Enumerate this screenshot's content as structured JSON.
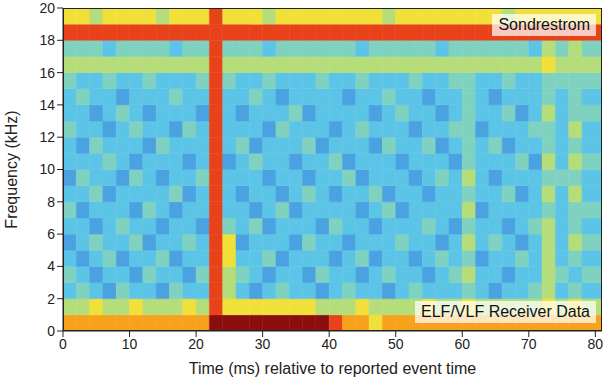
{
  "chart_data": {
    "type": "heatmap",
    "x_label": "Time (ms) relative to reported event time",
    "y_label": "Frequency (kHz)",
    "annotations": [
      "Sondrestrom",
      "ELF/VLF Receiver Data"
    ],
    "xlim": [
      0,
      81
    ],
    "xticks": [
      0,
      10,
      20,
      30,
      40,
      50,
      60,
      70,
      80
    ],
    "ylim": [
      0,
      20
    ],
    "yticks": [
      0,
      2,
      4,
      6,
      8,
      10,
      12,
      14,
      16,
      18,
      20
    ],
    "x_bins": [
      0,
      2,
      4,
      6,
      8,
      10,
      12,
      14,
      16,
      18,
      20,
      22,
      24,
      26,
      28,
      30,
      32,
      34,
      36,
      38,
      40,
      42,
      44,
      46,
      48,
      50,
      52,
      54,
      56,
      58,
      60,
      62,
      64,
      66,
      68,
      70,
      72,
      74,
      76,
      78,
      81
    ],
    "y_bins": [
      0,
      1,
      2,
      3,
      4,
      5,
      6,
      7,
      8,
      9,
      10,
      11,
      12,
      13,
      14,
      15,
      16,
      17,
      18,
      19,
      20
    ],
    "colors": [
      "#2b3d9e",
      "#3d6fd4",
      "#4aa3e0",
      "#5cc4e6",
      "#7fd1c0",
      "#b5dd7a",
      "#f2e03a",
      "#f7a21d",
      "#e8421a",
      "#8b0e0e"
    ],
    "cells": [
      [
        7,
        7,
        7,
        7,
        7,
        7,
        7,
        7,
        7,
        7,
        7,
        9,
        9,
        9,
        9,
        9,
        9,
        9,
        9,
        9,
        8,
        7,
        7,
        6,
        7,
        7,
        7,
        7,
        7,
        7,
        7,
        7,
        7,
        7,
        7,
        7,
        7,
        7,
        7,
        7
      ],
      [
        5,
        5,
        6,
        5,
        5,
        6,
        5,
        5,
        5,
        6,
        5,
        8,
        6,
        6,
        6,
        6,
        6,
        6,
        6,
        5,
        5,
        5,
        6,
        5,
        5,
        5,
        5,
        6,
        5,
        5,
        6,
        5,
        5,
        5,
        5,
        5,
        6,
        5,
        6,
        5
      ],
      [
        3,
        4,
        3,
        2,
        4,
        3,
        3,
        2,
        4,
        3,
        3,
        8,
        5,
        3,
        2,
        3,
        4,
        3,
        3,
        2,
        3,
        4,
        3,
        3,
        2,
        3,
        4,
        3,
        3,
        3,
        4,
        3,
        2,
        3,
        3,
        4,
        5,
        3,
        4,
        3
      ],
      [
        4,
        3,
        2,
        3,
        3,
        2,
        4,
        3,
        3,
        2,
        4,
        8,
        5,
        4,
        3,
        2,
        3,
        3,
        2,
        4,
        3,
        3,
        2,
        3,
        4,
        3,
        3,
        2,
        3,
        4,
        5,
        3,
        3,
        2,
        3,
        3,
        5,
        4,
        3,
        4
      ],
      [
        3,
        2,
        3,
        4,
        2,
        3,
        3,
        4,
        2,
        3,
        3,
        8,
        6,
        3,
        3,
        4,
        2,
        3,
        3,
        3,
        2,
        3,
        4,
        2,
        3,
        3,
        2,
        3,
        4,
        3,
        4,
        2,
        3,
        3,
        4,
        3,
        5,
        3,
        4,
        3
      ],
      [
        2,
        3,
        4,
        3,
        3,
        4,
        2,
        3,
        3,
        4,
        3,
        8,
        6,
        2,
        3,
        3,
        3,
        2,
        4,
        3,
        3,
        2,
        3,
        3,
        3,
        4,
        3,
        3,
        2,
        3,
        5,
        3,
        4,
        3,
        2,
        3,
        5,
        3,
        5,
        4
      ],
      [
        3,
        3,
        2,
        3,
        4,
        3,
        3,
        2,
        3,
        3,
        2,
        8,
        4,
        3,
        4,
        2,
        3,
        3,
        3,
        2,
        4,
        3,
        3,
        2,
        3,
        3,
        3,
        4,
        3,
        2,
        4,
        3,
        3,
        2,
        3,
        4,
        5,
        3,
        4,
        3
      ],
      [
        4,
        2,
        3,
        3,
        3,
        2,
        4,
        3,
        2,
        3,
        3,
        8,
        3,
        3,
        2,
        3,
        4,
        2,
        3,
        3,
        3,
        3,
        2,
        3,
        4,
        2,
        3,
        3,
        3,
        3,
        5,
        2,
        3,
        3,
        3,
        3,
        4,
        3,
        4,
        4
      ],
      [
        3,
        3,
        4,
        2,
        3,
        3,
        3,
        3,
        4,
        2,
        3,
        8,
        3,
        2,
        3,
        3,
        2,
        3,
        4,
        3,
        2,
        3,
        3,
        4,
        2,
        3,
        3,
        2,
        3,
        3,
        4,
        3,
        3,
        4,
        2,
        3,
        5,
        3,
        5,
        3
      ],
      [
        2,
        4,
        3,
        3,
        2,
        4,
        3,
        2,
        3,
        3,
        4,
        8,
        3,
        3,
        3,
        2,
        3,
        3,
        2,
        3,
        3,
        4,
        2,
        3,
        3,
        3,
        2,
        3,
        4,
        3,
        5,
        3,
        2,
        3,
        3,
        3,
        4,
        4,
        4,
        3
      ],
      [
        3,
        3,
        3,
        4,
        3,
        2,
        3,
        3,
        3,
        2,
        3,
        8,
        2,
        3,
        4,
        3,
        3,
        2,
        3,
        3,
        4,
        2,
        3,
        3,
        3,
        2,
        3,
        3,
        3,
        2,
        4,
        3,
        3,
        3,
        4,
        2,
        5,
        3,
        5,
        4
      ],
      [
        3,
        2,
        4,
        3,
        3,
        3,
        2,
        4,
        3,
        3,
        3,
        8,
        3,
        4,
        2,
        3,
        3,
        3,
        4,
        2,
        3,
        3,
        3,
        2,
        4,
        3,
        3,
        4,
        2,
        3,
        4,
        3,
        4,
        2,
        3,
        3,
        4,
        3,
        4,
        3
      ],
      [
        4,
        3,
        3,
        2,
        3,
        4,
        3,
        3,
        2,
        4,
        3,
        8,
        3,
        3,
        3,
        2,
        4,
        3,
        3,
        3,
        2,
        3,
        4,
        3,
        3,
        3,
        2,
        3,
        3,
        4,
        4,
        2,
        3,
        3,
        3,
        4,
        4,
        3,
        5,
        3
      ],
      [
        3,
        3,
        2,
        3,
        4,
        3,
        2,
        3,
        3,
        3,
        2,
        8,
        3,
        2,
        3,
        3,
        3,
        4,
        2,
        3,
        3,
        3,
        3,
        2,
        3,
        4,
        3,
        3,
        2,
        3,
        4,
        3,
        3,
        4,
        2,
        3,
        5,
        3,
        4,
        4
      ],
      [
        3,
        4,
        3,
        3,
        2,
        3,
        3,
        3,
        4,
        3,
        3,
        8,
        3,
        3,
        4,
        3,
        2,
        3,
        3,
        3,
        3,
        2,
        3,
        3,
        4,
        3,
        3,
        2,
        3,
        3,
        4,
        3,
        2,
        3,
        3,
        3,
        4,
        3,
        4,
        3
      ],
      [
        4,
        3,
        3,
        4,
        3,
        3,
        4,
        3,
        3,
        3,
        4,
        8,
        4,
        3,
        3,
        4,
        3,
        3,
        3,
        4,
        3,
        3,
        4,
        3,
        3,
        3,
        4,
        3,
        3,
        4,
        4,
        3,
        3,
        4,
        3,
        3,
        4,
        4,
        4,
        4
      ],
      [
        5,
        5,
        5,
        5,
        5,
        5,
        5,
        5,
        5,
        5,
        5,
        8,
        5,
        5,
        5,
        5,
        5,
        5,
        5,
        5,
        5,
        5,
        5,
        5,
        5,
        5,
        5,
        5,
        5,
        5,
        5,
        5,
        5,
        5,
        5,
        5,
        6,
        5,
        5,
        5
      ],
      [
        4,
        4,
        4,
        3,
        4,
        4,
        4,
        4,
        3,
        4,
        4,
        8,
        4,
        4,
        4,
        3,
        4,
        4,
        4,
        4,
        4,
        4,
        3,
        4,
        4,
        4,
        4,
        4,
        3,
        4,
        4,
        4,
        4,
        4,
        4,
        3,
        5,
        4,
        5,
        4
      ],
      [
        8,
        8,
        8,
        8,
        8,
        8,
        8,
        8,
        8,
        8,
        8,
        8,
        8,
        8,
        8,
        8,
        8,
        8,
        8,
        8,
        8,
        8,
        8,
        8,
        8,
        8,
        8,
        8,
        8,
        8,
        8,
        8,
        8,
        8,
        8,
        8,
        8,
        8,
        8,
        8
      ],
      [
        6,
        6,
        5,
        6,
        6,
        6,
        6,
        5,
        6,
        6,
        6,
        8,
        6,
        6,
        6,
        5,
        6,
        6,
        6,
        6,
        6,
        6,
        6,
        6,
        5,
        6,
        6,
        6,
        6,
        6,
        6,
        6,
        6,
        5,
        6,
        6,
        6,
        6,
        6,
        6
      ]
    ]
  }
}
